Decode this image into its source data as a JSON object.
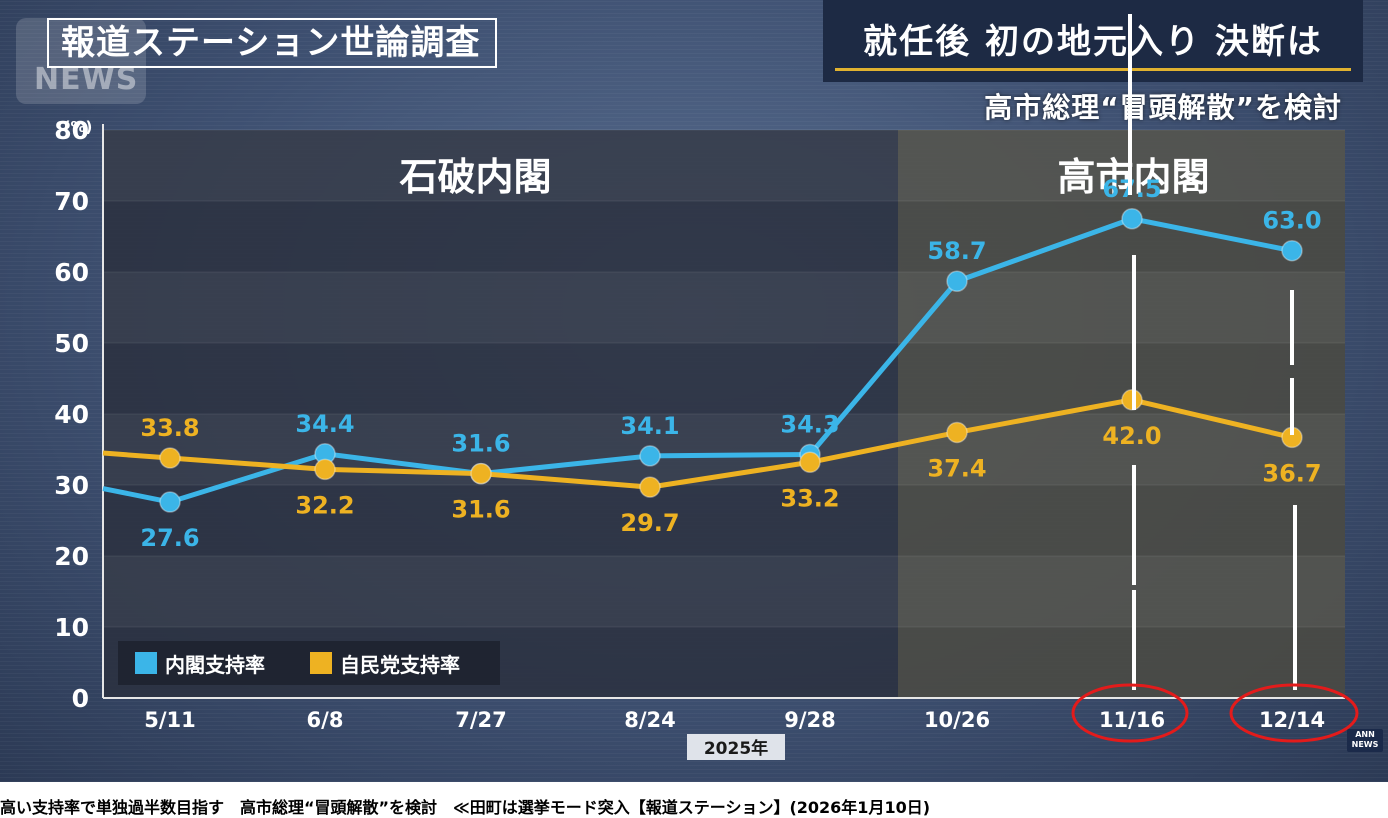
{
  "header": {
    "title": "報道ステーション世論調査",
    "logo_text": "NEWS"
  },
  "headline": {
    "main": "就任後 初の地元入り 決断は",
    "sub": "高市総理“冒頭解散”を検討"
  },
  "ann_logo": {
    "line1": "ANN",
    "line2": "NEWS"
  },
  "caption": "高い支持率で単独過半数目指す　高市総理“冒頭解散”を検討　≪田町は選挙モード突入【報道ステーション】(2026年1月10日)",
  "colors": {
    "cabinet": "#3bb5e8",
    "ldp": "#eeb222",
    "ishiba_band": "#2b3140",
    "takaichi_band": "#4a4a44"
  },
  "chart_data": {
    "type": "line",
    "unit_label": "(%)",
    "year_label": "2025年",
    "ylim": [
      0,
      80
    ],
    "yticks": [
      0,
      10,
      20,
      30,
      40,
      50,
      60,
      70,
      80
    ],
    "categories": [
      "5/11",
      "6/8",
      "7/27",
      "8/24",
      "9/28",
      "10/26",
      "11/16",
      "12/14"
    ],
    "periods": [
      {
        "label": "石破内閣",
        "from_index": 0,
        "to_index": 4
      },
      {
        "label": "高市内閣",
        "from_index": 5,
        "to_index": 7
      }
    ],
    "series": [
      {
        "name": "内閣支持率",
        "color": "#3bb5e8",
        "values": [
          27.6,
          34.4,
          31.6,
          34.1,
          34.3,
          58.7,
          67.5,
          63.0
        ],
        "labels": [
          "27.6",
          "34.4",
          "31.6",
          "34.1",
          "34.3",
          "58.7",
          "67.5",
          "63.0"
        ],
        "label_position": [
          "below",
          "above",
          "above",
          "above",
          "above",
          "above",
          "above",
          "above"
        ],
        "lead_in_value": 29.5
      },
      {
        "name": "自民党支持率",
        "color": "#eeb222",
        "values": [
          33.8,
          32.2,
          31.6,
          29.7,
          33.2,
          37.4,
          42.0,
          36.7
        ],
        "labels": [
          "33.8",
          "32.2",
          "31.6",
          "29.7",
          "33.2",
          "37.4",
          "42.0",
          "36.7"
        ],
        "label_position": [
          "above",
          "below",
          "below",
          "below",
          "below",
          "below",
          "below",
          "below"
        ],
        "lead_in_value": 34.5
      }
    ],
    "legend_position": "bottom-left",
    "highlighted_categories": [
      "11/16",
      "12/14"
    ]
  }
}
